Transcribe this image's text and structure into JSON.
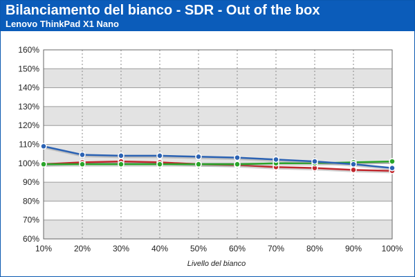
{
  "header": {
    "title": "Bilanciamento del bianco - SDR - Out of the box",
    "subtitle": "Lenovo ThinkPad X1 Nano"
  },
  "chart_data": {
    "type": "line",
    "title": "Bilanciamento del bianco - SDR - Out of the box",
    "subtitle": "Lenovo ThinkPad X1 Nano",
    "xlabel": "Livello del bianco",
    "ylabel": "",
    "categories": [
      "10%",
      "20%",
      "30%",
      "40%",
      "50%",
      "60%",
      "70%",
      "80%",
      "90%",
      "100%"
    ],
    "yticks": [
      "60%",
      "70%",
      "80%",
      "90%",
      "100%",
      "110%",
      "120%",
      "130%",
      "140%",
      "150%",
      "160%"
    ],
    "ylim": [
      60,
      160
    ],
    "grid": true,
    "legend": "none",
    "series": [
      {
        "color": "#c0272d",
        "values": [
          99.5,
          100.5,
          101,
          100.5,
          99.5,
          99,
          98,
          97.5,
          96.5,
          96
        ]
      },
      {
        "color": "#2aa52a",
        "values": [
          99.5,
          99.5,
          99.5,
          99.5,
          99.5,
          99.5,
          100,
          100,
          100.5,
          101
        ]
      },
      {
        "color": "#2b62b3",
        "values": [
          109,
          104.5,
          104,
          104,
          103.5,
          103,
          102,
          101,
          99.5,
          97.5
        ]
      }
    ]
  }
}
